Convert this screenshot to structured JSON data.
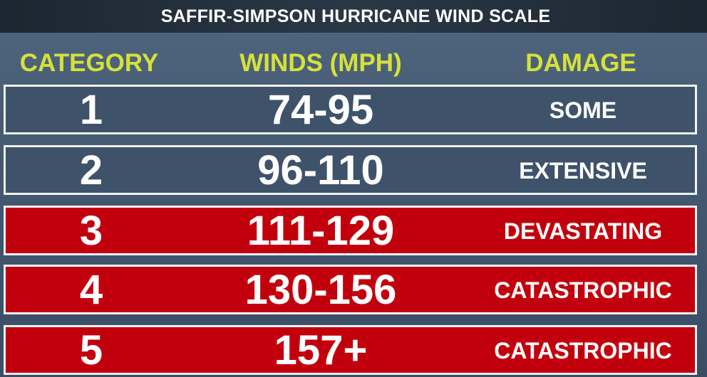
{
  "header": {
    "title": "SAFFIR-SIMPSON HURRICANE WIND SCALE"
  },
  "table": {
    "columns": [
      "CATEGORY",
      "WINDS (MPH)",
      "DAMAGE"
    ],
    "rows": [
      [
        "1",
        "74-95",
        "SOME"
      ],
      [
        "2",
        "96-110",
        "EXTENSIVE"
      ],
      [
        "3",
        "111-129",
        "DEVASTATING"
      ],
      [
        "4",
        "130-156",
        "CATASTROPHIC"
      ],
      [
        "5",
        "157+",
        "CATASTROPHIC"
      ]
    ]
  }
}
